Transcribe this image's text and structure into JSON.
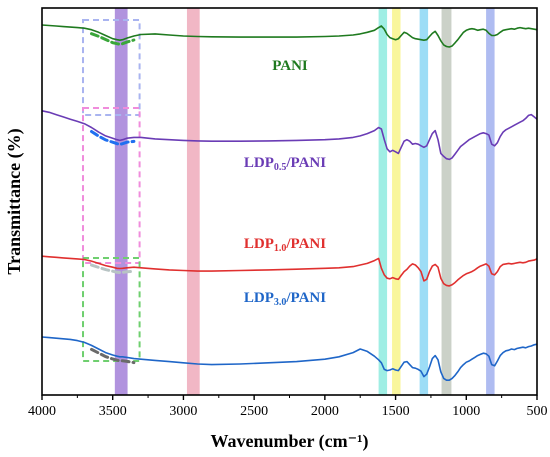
{
  "chart_data": {
    "type": "line",
    "xlabel": "Wavenumber (cm⁻¹)",
    "ylabel": "Transmittance (%)",
    "xlim": [
      4000,
      500
    ],
    "x_reversed": true,
    "x_ticks": [
      4000,
      3500,
      3000,
      2500,
      2000,
      1500,
      1000,
      500
    ],
    "x_tick_labels": [
      "4000",
      "3500",
      "3000",
      "2500",
      "2000",
      "1500",
      "1000",
      "500"
    ],
    "y_ticks_shown": false,
    "grid": false,
    "legend": "none",
    "series": [
      {
        "name": "PANI",
        "label_main": "PANI",
        "label_sub": "",
        "label_tail": "",
        "color": "#1f7a1f",
        "x": [
          4000,
          3950,
          3900,
          3850,
          3800,
          3750,
          3700,
          3650,
          3600,
          3550,
          3500,
          3470,
          3450,
          3430,
          3400,
          3350,
          3300,
          3200,
          3100,
          3000,
          2900,
          2800,
          2600,
          2400,
          2200,
          2000,
          1900,
          1800,
          1750,
          1700,
          1650,
          1620,
          1600,
          1580,
          1560,
          1540,
          1520,
          1500,
          1480,
          1460,
          1440,
          1420,
          1400,
          1380,
          1360,
          1340,
          1320,
          1300,
          1280,
          1260,
          1240,
          1220,
          1200,
          1180,
          1160,
          1140,
          1120,
          1100,
          1080,
          1060,
          1040,
          1020,
          1000,
          980,
          960,
          940,
          920,
          900,
          880,
          860,
          840,
          820,
          800,
          780,
          760,
          740,
          720,
          700,
          680,
          660,
          640,
          620,
          600,
          580,
          560,
          540,
          520,
          500
        ],
        "values": [
          100,
          99.5,
          99,
          98.5,
          98,
          97.5,
          97,
          95.5,
          93,
          90,
          87,
          86,
          85.5,
          86,
          87.5,
          89.5,
          91,
          91.5,
          90.5,
          89.5,
          89,
          88.8,
          88.5,
          88.5,
          88.5,
          89,
          89.5,
          90.5,
          91.5,
          93,
          95,
          97.5,
          99,
          96,
          91,
          88,
          87,
          86,
          87,
          90,
          93,
          92,
          90,
          88,
          87,
          86.5,
          86,
          85.5,
          86,
          89,
          92,
          94,
          90,
          85,
          81,
          79.5,
          79,
          80,
          83,
          86,
          89.5,
          93,
          95,
          96,
          96.5,
          96,
          95,
          95.5,
          96,
          95,
          92,
          90,
          90,
          91,
          93,
          95,
          95.5,
          96,
          96.5,
          96,
          97,
          97.5,
          97,
          96.5,
          97,
          96.5,
          96,
          95.5
        ]
      },
      {
        "name": "LDP0.5/PANI",
        "label_main": "LDP",
        "label_sub": "0.5",
        "label_tail": "/PANI",
        "color": "#6a3cb5",
        "x": [
          4000,
          3950,
          3900,
          3850,
          3800,
          3750,
          3700,
          3650,
          3600,
          3550,
          3500,
          3470,
          3450,
          3430,
          3400,
          3350,
          3300,
          3200,
          3100,
          3000,
          2900,
          2800,
          2600,
          2400,
          2200,
          2000,
          1900,
          1800,
          1750,
          1700,
          1650,
          1620,
          1600,
          1580,
          1560,
          1540,
          1520,
          1500,
          1480,
          1460,
          1440,
          1420,
          1400,
          1380,
          1360,
          1340,
          1320,
          1300,
          1280,
          1260,
          1240,
          1220,
          1200,
          1180,
          1160,
          1140,
          1120,
          1100,
          1080,
          1060,
          1040,
          1020,
          1000,
          980,
          960,
          940,
          920,
          900,
          880,
          860,
          840,
          820,
          800,
          780,
          760,
          740,
          720,
          700,
          680,
          660,
          640,
          620,
          600,
          580,
          560,
          540,
          520,
          500
        ],
        "values": [
          85,
          84,
          82.5,
          81,
          79.5,
          78,
          76.5,
          74,
          71,
          68.5,
          67,
          66,
          65.5,
          66,
          67,
          67.5,
          67.5,
          66.5,
          66,
          65.5,
          65.2,
          65,
          65,
          65.2,
          65.5,
          66,
          66.5,
          67.5,
          68.5,
          70,
          72,
          74,
          73,
          66,
          60,
          58,
          59,
          58,
          57,
          61,
          65,
          66,
          65,
          63,
          63.5,
          63,
          62,
          61,
          62,
          66,
          70,
          72,
          66,
          57,
          55,
          53.5,
          53,
          54,
          56.5,
          59,
          61.5,
          63,
          64.5,
          66,
          67,
          68,
          69,
          70,
          70.5,
          70,
          69,
          63,
          62,
          64,
          68,
          71,
          72.5,
          73.5,
          74.5,
          75.5,
          76.5,
          77.5,
          78.5,
          80,
          82,
          82.5,
          81,
          79.5
        ]
      },
      {
        "name": "LDP1.0/PANI",
        "label_main": "LDP",
        "label_sub": "1.0",
        "label_tail": "/PANI",
        "color": "#e0302f",
        "x": [
          4000,
          3950,
          3900,
          3850,
          3800,
          3750,
          3700,
          3650,
          3600,
          3550,
          3500,
          3470,
          3450,
          3430,
          3400,
          3350,
          3300,
          3200,
          3100,
          3000,
          2900,
          2800,
          2600,
          2400,
          2200,
          2000,
          1900,
          1800,
          1750,
          1700,
          1650,
          1620,
          1600,
          1580,
          1560,
          1540,
          1520,
          1500,
          1480,
          1460,
          1440,
          1420,
          1400,
          1380,
          1360,
          1340,
          1320,
          1300,
          1280,
          1260,
          1240,
          1220,
          1200,
          1180,
          1160,
          1140,
          1120,
          1100,
          1080,
          1060,
          1040,
          1020,
          1000,
          980,
          960,
          940,
          920,
          900,
          880,
          860,
          840,
          820,
          800,
          780,
          760,
          740,
          720,
          700,
          680,
          660,
          640,
          620,
          600,
          580,
          560,
          540,
          520,
          500
        ],
        "values": [
          58,
          57.5,
          57,
          56.5,
          56,
          55.5,
          55,
          53.5,
          51.5,
          49.5,
          48,
          47,
          46.8,
          47,
          47.5,
          48,
          47.5,
          46.5,
          45.5,
          45,
          44.5,
          44.5,
          45,
          45.5,
          46.2,
          47,
          47.5,
          48.5,
          50,
          51.5,
          54,
          56,
          47,
          41,
          38,
          37.5,
          38.5,
          37.5,
          37,
          40.5,
          44,
          46,
          49,
          51,
          50,
          47.5,
          44,
          35.5,
          37,
          44,
          49,
          50.5,
          48,
          38,
          33,
          31.5,
          31,
          32,
          34,
          36.5,
          38.5,
          40.5,
          42,
          43,
          44,
          45.5,
          47.5,
          49,
          50,
          51,
          49,
          42,
          41,
          44,
          48.5,
          50.5,
          51,
          51.5,
          51,
          51.5,
          52,
          52.5,
          52,
          52.5,
          53.5,
          54,
          54.5,
          55.5
        ]
      },
      {
        "name": "LDP3.0/PANI",
        "label_main": "LDP",
        "label_sub": "3.0",
        "label_tail": "/PANI",
        "color": "#1f66c8",
        "x": [
          4000,
          3950,
          3900,
          3850,
          3800,
          3750,
          3700,
          3650,
          3600,
          3550,
          3500,
          3470,
          3450,
          3430,
          3400,
          3350,
          3300,
          3200,
          3100,
          3000,
          2900,
          2800,
          2600,
          2400,
          2200,
          2000,
          1900,
          1800,
          1750,
          1700,
          1650,
          1620,
          1600,
          1580,
          1560,
          1540,
          1520,
          1500,
          1480,
          1460,
          1440,
          1420,
          1400,
          1380,
          1360,
          1340,
          1320,
          1300,
          1280,
          1260,
          1240,
          1220,
          1200,
          1180,
          1160,
          1140,
          1120,
          1100,
          1080,
          1060,
          1040,
          1020,
          1000,
          980,
          960,
          940,
          920,
          900,
          880,
          860,
          840,
          820,
          800,
          780,
          760,
          740,
          720,
          700,
          680,
          660,
          640,
          620,
          600,
          580,
          560,
          540,
          520,
          500
        ],
        "values": [
          40,
          39.5,
          39,
          38.5,
          38,
          37,
          35.5,
          33,
          30,
          27,
          25,
          24,
          23.5,
          23.5,
          23,
          22,
          21.5,
          20.5,
          19.5,
          18.5,
          17.5,
          17,
          17.5,
          18.5,
          19.5,
          21.5,
          23.5,
          27,
          30,
          28,
          24,
          21,
          18.5,
          13,
          12,
          12.5,
          13.5,
          12.5,
          12,
          15.5,
          19,
          19.5,
          17,
          14.5,
          14,
          13,
          11.5,
          7,
          9,
          15,
          22,
          24.5,
          21,
          11,
          5.5,
          4,
          4,
          5.5,
          8,
          11,
          14.5,
          17,
          19,
          20,
          21.5,
          23,
          24.5,
          25.5,
          26.5,
          26,
          24,
          17,
          16,
          20,
          24.5,
          27,
          28.5,
          29,
          30,
          29.5,
          30.5,
          31,
          31.5,
          31,
          32,
          32.5,
          33.5,
          34
        ]
      }
    ],
    "shaded_bands": [
      {
        "center": 3440,
        "width": 90,
        "color": "#7d4bc8"
      },
      {
        "center": 2930,
        "width": 90,
        "color": "#e8879f"
      },
      {
        "center": 1590,
        "width": 60,
        "color": "#5fe3d2"
      },
      {
        "center": 1495,
        "width": 60,
        "color": "#f5f05a"
      },
      {
        "center": 1300,
        "width": 60,
        "color": "#5cc6f0"
      },
      {
        "center": 1140,
        "width": 70,
        "color": "#a8b3a3"
      },
      {
        "center": 830,
        "width": 60,
        "color": "#7a8fe8"
      }
    ]
  }
}
